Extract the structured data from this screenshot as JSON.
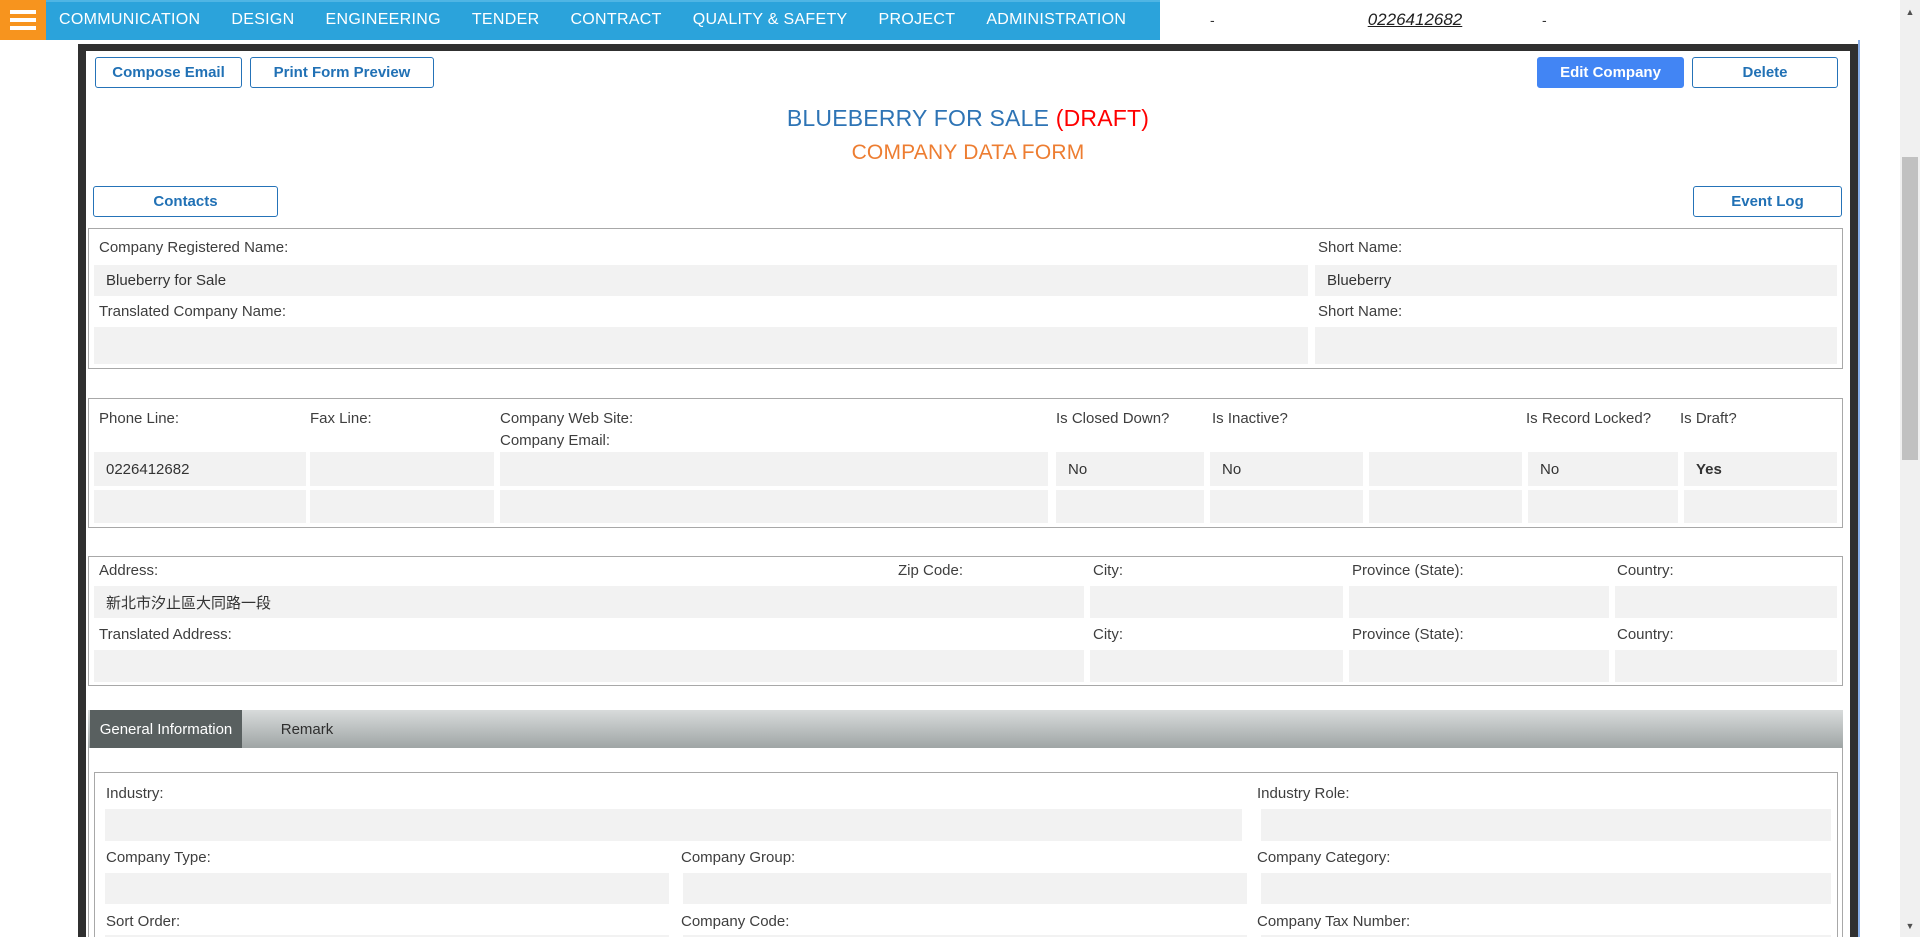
{
  "nav": {
    "items": [
      "COMMUNICATION",
      "DESIGN",
      "ENGINEERING",
      "TENDER",
      "CONTRACT",
      "QUALITY & SAFETY",
      "PROJECT",
      "ADMINISTRATION"
    ],
    "left_dash": "-",
    "account_number": "0226412682",
    "right_dash": "-"
  },
  "toolbar": {
    "compose_email": "Compose Email",
    "print_form_preview": "Print Form Preview",
    "edit_company": "Edit Company",
    "delete": "Delete"
  },
  "header": {
    "title": "BLUEBERRY FOR SALE",
    "draft_suffix": "(DRAFT)",
    "subtitle": "COMPANY DATA FORM"
  },
  "buttons": {
    "contacts": "Contacts",
    "event_log": "Event Log"
  },
  "company_section": {
    "registered_name_label": "Company Registered Name:",
    "registered_name_value": "Blueberry for Sale",
    "short_name_label": "Short Name:",
    "short_name_value": "Blueberry",
    "translated_name_label": "Translated Company Name:",
    "translated_name_value": "",
    "translated_short_name_label": "Short Name:",
    "translated_short_name_value": ""
  },
  "contact_section": {
    "phone_label": "Phone Line:",
    "phone_value": "0226412682",
    "fax_label": "Fax Line:",
    "fax_value": "",
    "website_label": "Company Web Site:",
    "email_label": "Company Email:",
    "website_value": "",
    "closed_label": "Is Closed Down?",
    "closed_value": "No",
    "inactive_label": "Is Inactive?",
    "inactive_value": "No",
    "extra_value": "",
    "locked_label": "Is Record Locked?",
    "locked_value": "No",
    "draft_label": "Is Draft?",
    "draft_value": "Yes",
    "row2_values": [
      "",
      "",
      "",
      "",
      "",
      "",
      "",
      ""
    ]
  },
  "address_section": {
    "address_label": "Address:",
    "address_value": "新北市汐止區大同路一段",
    "zip_label": "Zip Code:",
    "city_label": "City:",
    "city_value": "",
    "province_label": "Province (State):",
    "province_value": "",
    "country_label": "Country:",
    "country_value": "",
    "translated_address_label": "Translated Address:",
    "translated_address_value": "",
    "city2_label": "City:",
    "city2_value": "",
    "province2_label": "Province (State):",
    "province2_value": "",
    "country2_label": "Country:",
    "country2_value": ""
  },
  "tabs": {
    "general": "General Information",
    "remark": "Remark"
  },
  "general_section": {
    "industry_label": "Industry:",
    "industry_value": "",
    "industry_role_label": "Industry Role:",
    "industry_role_value": "",
    "company_type_label": "Company Type:",
    "company_type_value": "",
    "company_group_label": "Company Group:",
    "company_group_value": "",
    "company_category_label": "Company Category:",
    "company_category_value": "",
    "sort_order_label": "Sort Order:",
    "company_code_label": "Company Code:",
    "company_tax_label": "Company Tax Number:"
  },
  "icons": {
    "scroll_up": "▲",
    "scroll_down": "▼"
  },
  "colors": {
    "nav_blue": "#2BA3DB",
    "hamburger_orange": "#F7941E",
    "title_blue": "#2E74B5",
    "draft_red": "#FF0000",
    "subtitle_orange": "#ED7D31",
    "primary_button_blue": "#4285F4",
    "outline_button_blue": "#2573B8",
    "frame_dark": "#303030",
    "field_gray": "#F2F2F2",
    "tab_active_gray": "#596060"
  }
}
